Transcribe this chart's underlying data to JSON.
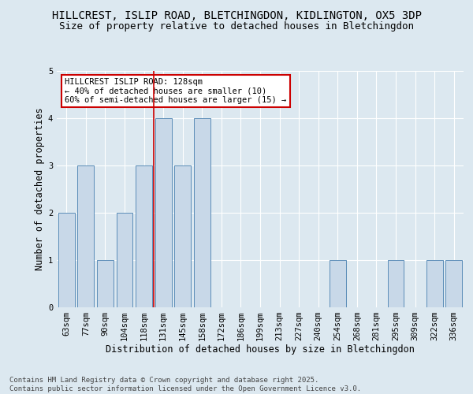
{
  "title1": "HILLCREST, ISLIP ROAD, BLETCHINGDON, KIDLINGTON, OX5 3DP",
  "title2": "Size of property relative to detached houses in Bletchingdon",
  "xlabel": "Distribution of detached houses by size in Bletchingdon",
  "ylabel": "Number of detached properties",
  "categories": [
    "63sqm",
    "77sqm",
    "90sqm",
    "104sqm",
    "118sqm",
    "131sqm",
    "145sqm",
    "158sqm",
    "172sqm",
    "186sqm",
    "199sqm",
    "213sqm",
    "227sqm",
    "240sqm",
    "254sqm",
    "268sqm",
    "281sqm",
    "295sqm",
    "309sqm",
    "322sqm",
    "336sqm"
  ],
  "values": [
    2,
    3,
    1,
    2,
    3,
    4,
    3,
    4,
    0,
    0,
    0,
    0,
    0,
    0,
    1,
    0,
    0,
    1,
    0,
    1,
    1
  ],
  "bar_color": "#c8d8e8",
  "bar_edge_color": "#5b8db8",
  "ylim": [
    0,
    5
  ],
  "yticks": [
    0,
    1,
    2,
    3,
    4,
    5
  ],
  "vline_index": 5,
  "annotation_text": "HILLCREST ISLIP ROAD: 128sqm\n← 40% of detached houses are smaller (10)\n60% of semi-detached houses are larger (15) →",
  "annotation_box_color": "#ffffff",
  "annotation_box_edge_color": "#cc0000",
  "vline_color": "#cc0000",
  "bg_color": "#dce8f0",
  "footer1": "Contains HM Land Registry data © Crown copyright and database right 2025.",
  "footer2": "Contains public sector information licensed under the Open Government Licence v3.0.",
  "title1_fontsize": 10,
  "title2_fontsize": 9,
  "xlabel_fontsize": 8.5,
  "ylabel_fontsize": 8.5,
  "tick_fontsize": 7.5,
  "annotation_fontsize": 7.5,
  "footer_fontsize": 6.5
}
